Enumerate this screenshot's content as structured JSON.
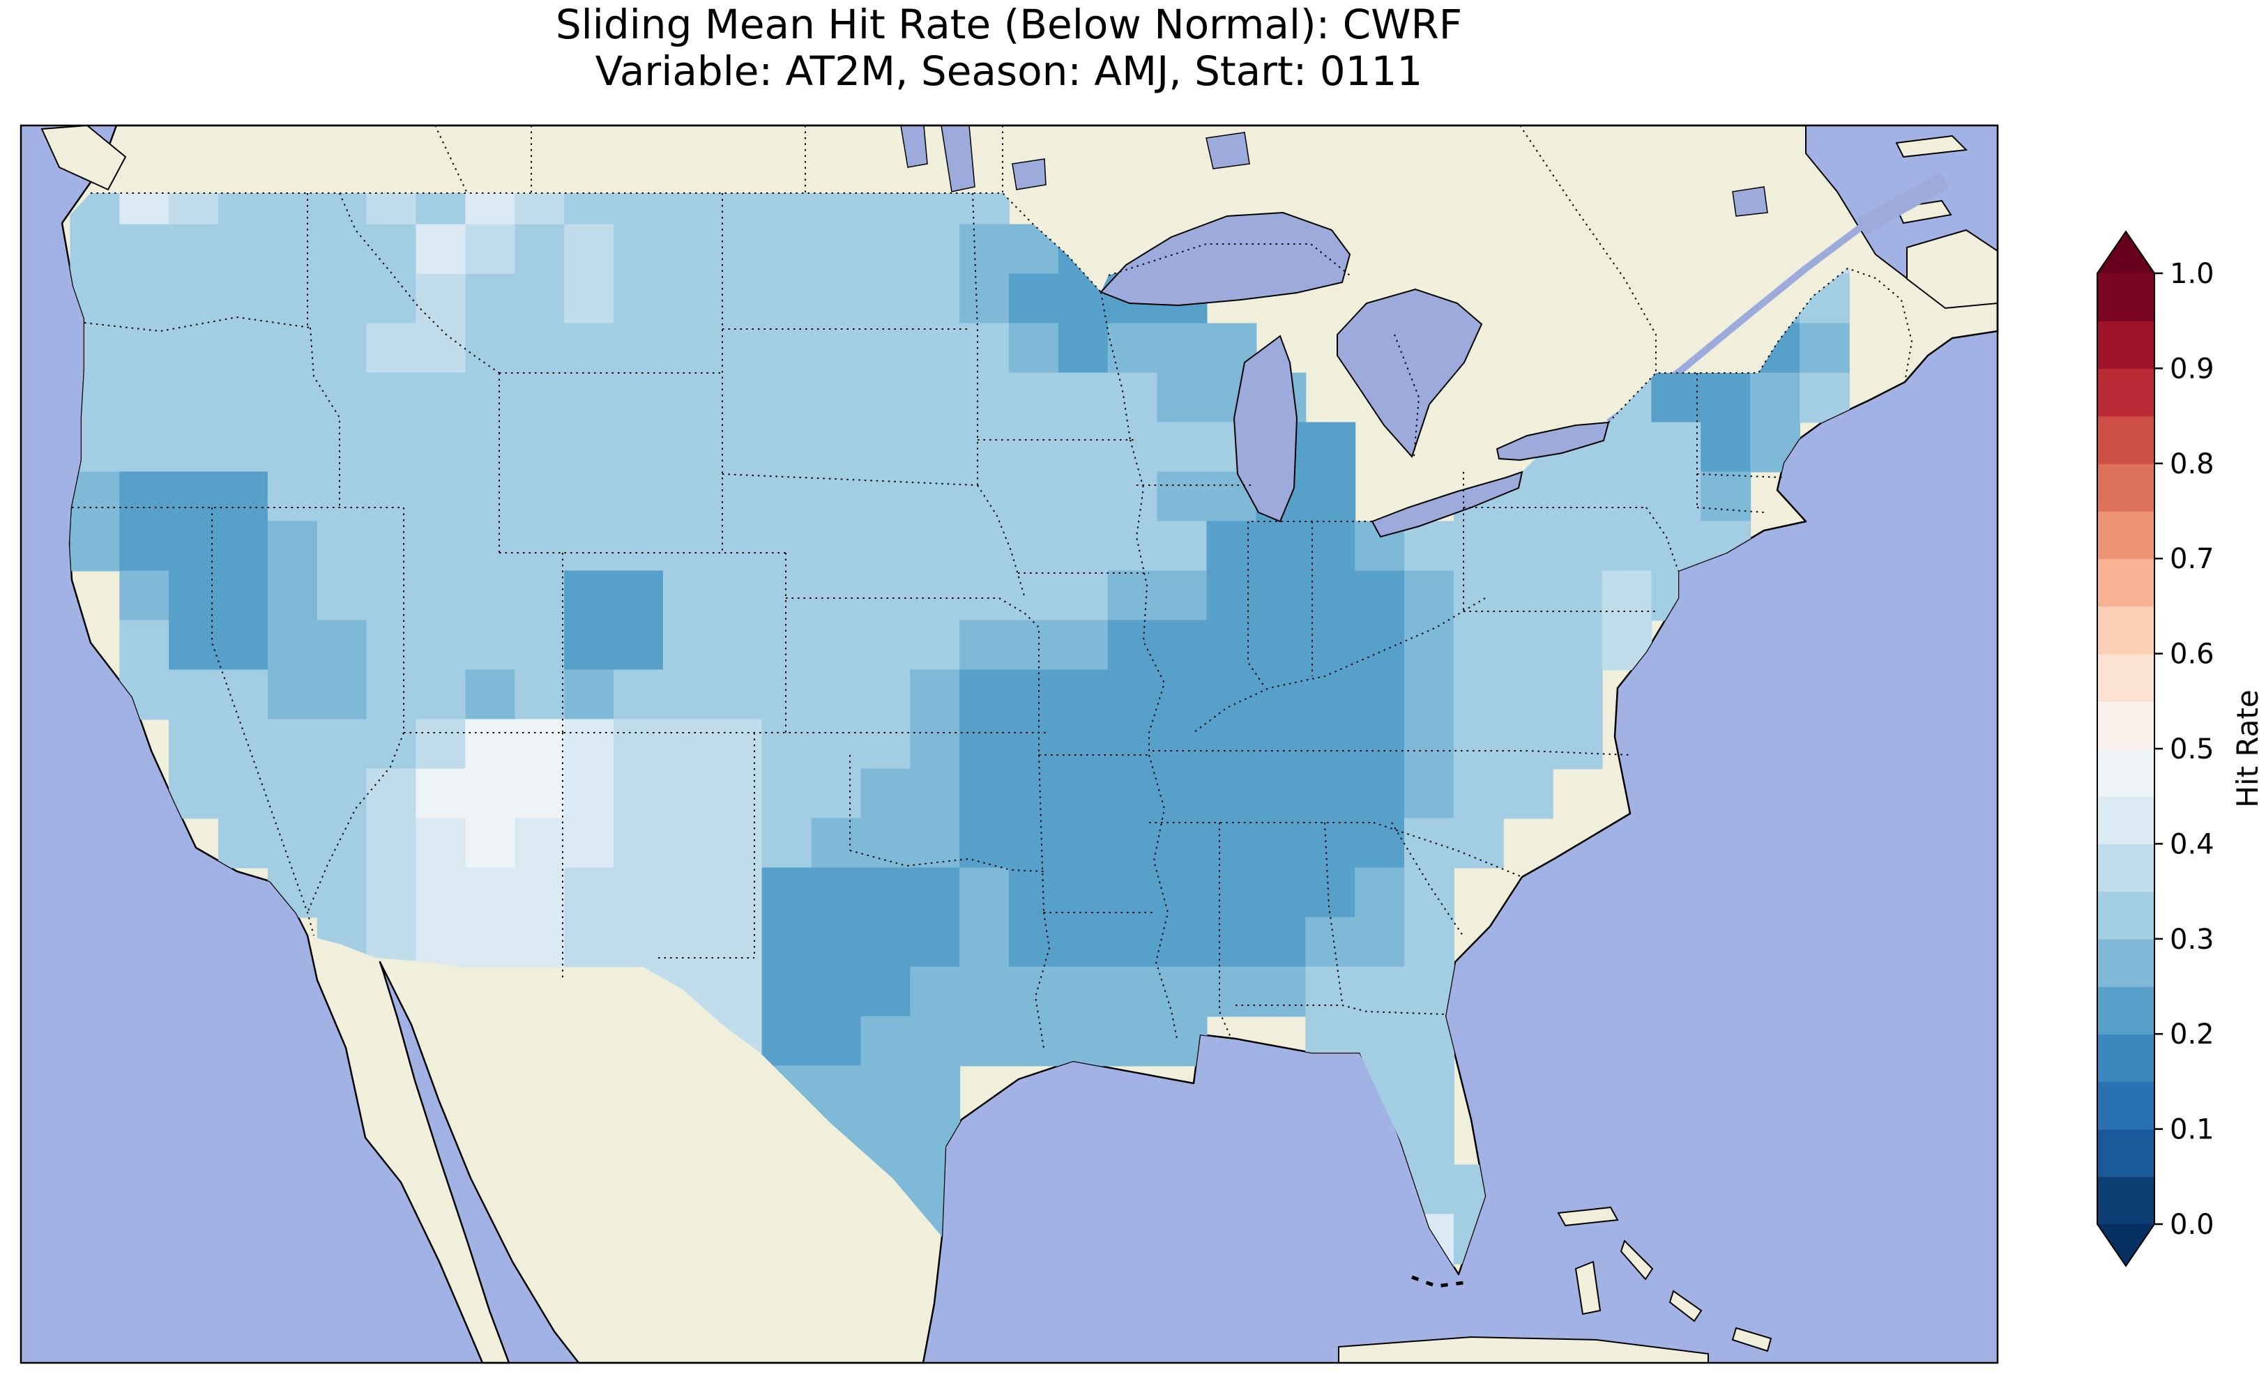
{
  "title": {
    "line1": "Sliding Mean Hit Rate (Below Normal): CWRF",
    "line2": "Variable: AT2M, Season: AMJ, Start: 0111"
  },
  "colorbar": {
    "label": "Hit Rate",
    "ticks": [
      "0.0",
      "0.1",
      "0.2",
      "0.3",
      "0.4",
      "0.5",
      "0.6",
      "0.7",
      "0.8",
      "0.9",
      "1.0"
    ],
    "tick_values": [
      0.0,
      0.1,
      0.2,
      0.3,
      0.4,
      0.5,
      0.6,
      0.7,
      0.8,
      0.9,
      1.0
    ],
    "bin_size": 0.05,
    "extend_over_color": "#67001f",
    "extend_under_color": "#053061",
    "colormap": {
      "name": "RdBu_r",
      "anchors": [
        {
          "t": 0.0,
          "color": "#053061"
        },
        {
          "t": 0.1,
          "color": "#2166ac"
        },
        {
          "t": 0.2,
          "color": "#4393c3"
        },
        {
          "t": 0.3,
          "color": "#92c5de"
        },
        {
          "t": 0.4,
          "color": "#d1e5f0"
        },
        {
          "t": 0.5,
          "color": "#f7f7f7"
        },
        {
          "t": 0.6,
          "color": "#fddbc7"
        },
        {
          "t": 0.7,
          "color": "#f4a582"
        },
        {
          "t": 0.8,
          "color": "#d6604d"
        },
        {
          "t": 0.9,
          "color": "#b2182b"
        },
        {
          "t": 1.0,
          "color": "#67001f"
        }
      ]
    }
  },
  "map": {
    "ocean_color": "#a2b2e4",
    "lake_color": "#9dabdc",
    "land_color": "#f0efdb",
    "coast_color": "#000000",
    "border_style": "dotted"
  },
  "chart_data": {
    "type": "heatmap",
    "metric": "Sliding Mean Hit Rate (Below Normal)",
    "model": "CWRF",
    "variable": "AT2M",
    "season": "AMJ",
    "start": "0111",
    "region": "Continental United States",
    "extent": {
      "lon_min": -126,
      "lon_max": -64,
      "lat_min": 23,
      "lat_max": 50.5
    },
    "displayed_value_range": [
      0.2,
      0.5
    ],
    "grid_shape": [
      25,
      40
    ],
    "value_key": {
      "b": 0.225,
      "c": 0.275,
      "d": 0.325,
      "e": 0.375,
      "f": 0.425,
      "g": 0.475
    },
    "grid_rows": [
      "........................................",
      ".dfedddedfeddddddddd....................",
      ".dddddddfededddddddccbbb...........ee...",
      ".dddddddeddedddddddcbbbb..........ecd...",
      ".ddddddeedddddddddddcbccc........bbbc...",
      ".ddddddddddddddddddddddccc.....ddbbcd...",
      ".ddddddddddddddddddddddddbb...ddddbc....",
      ".cbbbddddddddddddddddddccbb..dddddc.....",
      ".cbbbcddddddddddddddddddbbbcddddddd.....",
      "..cbbcdddddbbdddddddddccbbbbcddded......",
      "..dbbccddddbbddddddcccbbbbbbcddde.......",
      "..dddccddcdcddddddcbbbbbbbbbcddd........",
      "...dddddeggfeeedddcbbbbbbbbbcddd........",
      "...ddddegggfeeeddccbbbbbbbbbcdd.........",
      "....dddefgffeeedcccbbbbbbbbbdd..........",
      ".....ddefffeeeebbbbcbbbbbbbcd...........",
      "......defffeeeebbbbcbbbbbbccd...........",
      "............eeebbbccccccccddd...........",
      ".............eebbccccccc..ddd...........",
      "...............cccc........dd...........",
      "................ccc........dd...........",
      ".................cc.........dd..........",
      "..................c.........fd..........",
      "............................d...........",
      "........................................"
    ]
  }
}
